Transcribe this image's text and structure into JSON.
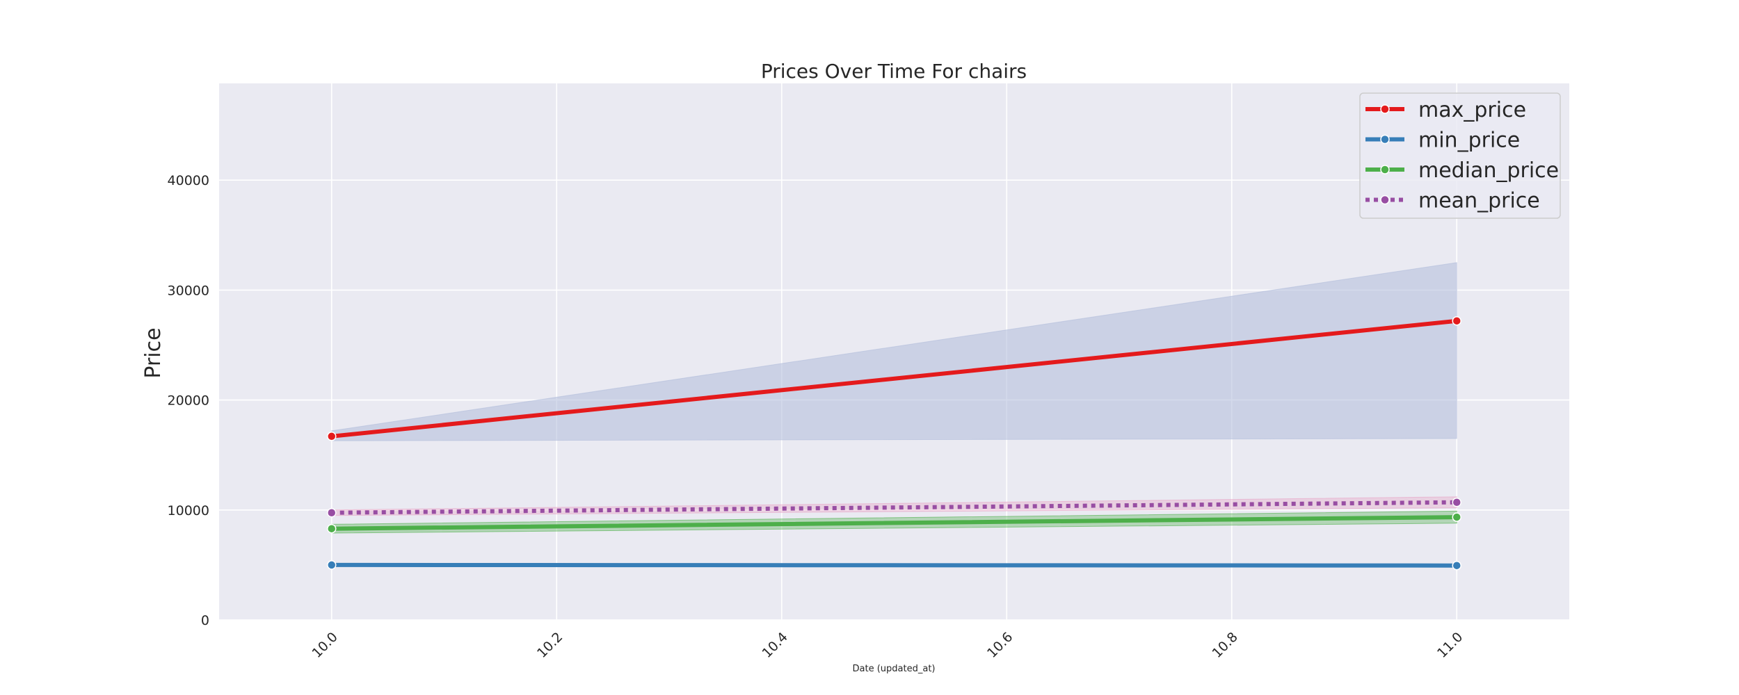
{
  "chart_data": {
    "type": "line",
    "title": "Prices Over Time For chairs",
    "xlabel": "Date (updated_at)",
    "ylabel": "Price",
    "x": [
      10.0,
      11.0
    ],
    "xlim": [
      9.9,
      11.1
    ],
    "ylim": [
      0,
      48800
    ],
    "x_ticks": [
      10.0,
      10.2,
      10.4,
      10.6,
      10.8,
      11.0
    ],
    "x_tick_labels": [
      "10.0",
      "10.2",
      "10.4",
      "10.6",
      "10.8",
      "11.0"
    ],
    "y_ticks": [
      0,
      10000,
      20000,
      30000,
      40000
    ],
    "y_tick_labels": [
      "0",
      "10000",
      "20000",
      "30000",
      "40000"
    ],
    "grid": true,
    "legend_position": "top-right",
    "series": [
      {
        "name": "max_price",
        "values": [
          16700,
          27200
        ],
        "color": "#e41a1c",
        "style": "solid",
        "ci_lower": [
          16300,
          16500
        ],
        "ci_upper": [
          17200,
          32500
        ],
        "ci_color": "#b0bcda"
      },
      {
        "name": "min_price",
        "values": [
          5000,
          4950
        ],
        "color": "#377eb8",
        "style": "solid",
        "ci_lower": [
          4900,
          4850
        ],
        "ci_upper": [
          5100,
          5050
        ],
        "ci_color": "#377eb8"
      },
      {
        "name": "median_price",
        "values": [
          8300,
          9350
        ],
        "color": "#4daf4a",
        "style": "solid",
        "ci_lower": [
          7900,
          8800
        ],
        "ci_upper": [
          8700,
          9900
        ],
        "ci_color": "#4daf4a"
      },
      {
        "name": "mean_price",
        "values": [
          9750,
          10700
        ],
        "color": "#984ea3",
        "style": "dotted",
        "ci_lower": [
          9500,
          10200
        ],
        "ci_upper": [
          10000,
          11200
        ],
        "ci_color": "#e7a1c4"
      }
    ]
  }
}
